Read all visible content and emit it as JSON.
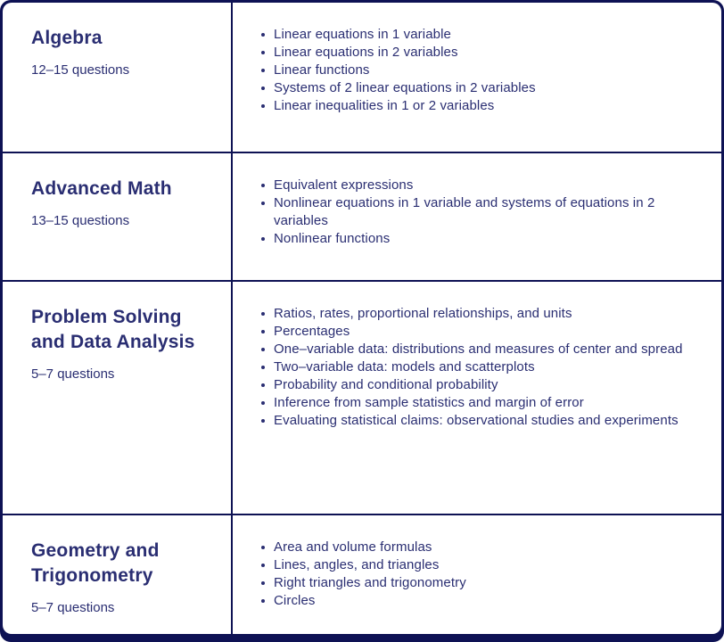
{
  "colors": {
    "border": "#0e1254",
    "text": "#2a2e72",
    "card_background": "#ffffff"
  },
  "table": {
    "rows": [
      {
        "title": "Algebra",
        "questions": "12–15 questions",
        "bullets": [
          "Linear equations in 1 variable",
          "Linear equations in 2 variables",
          "Linear functions",
          "Systems of 2 linear equations in 2 variables",
          "Linear inequalities in 1 or 2 variables"
        ]
      },
      {
        "title": "Advanced Math",
        "questions": "13–15 questions",
        "bullets": [
          "Equivalent expressions",
          "Nonlinear equations in 1 variable and systems of equations in 2 variables",
          "Nonlinear functions"
        ]
      },
      {
        "title": "Problem Solving and Data Analysis",
        "questions": "5–7 questions",
        "bullets": [
          "Ratios, rates, proportional relationships, and units",
          "Percentages",
          "One–variable data: distributions and measures of center and spread",
          "Two–variable data: models and scatterplots",
          "Probability and conditional probability",
          "Inference from sample statistics and margin of error",
          "Evaluating statistical claims: observational studies and experiments"
        ]
      },
      {
        "title": "Geometry and Trigonometry",
        "questions": "5–7 questions",
        "bullets": [
          "Area and volume formulas",
          "Lines, angles, and triangles",
          "Right triangles and trigonometry",
          "Circles"
        ]
      }
    ]
  }
}
